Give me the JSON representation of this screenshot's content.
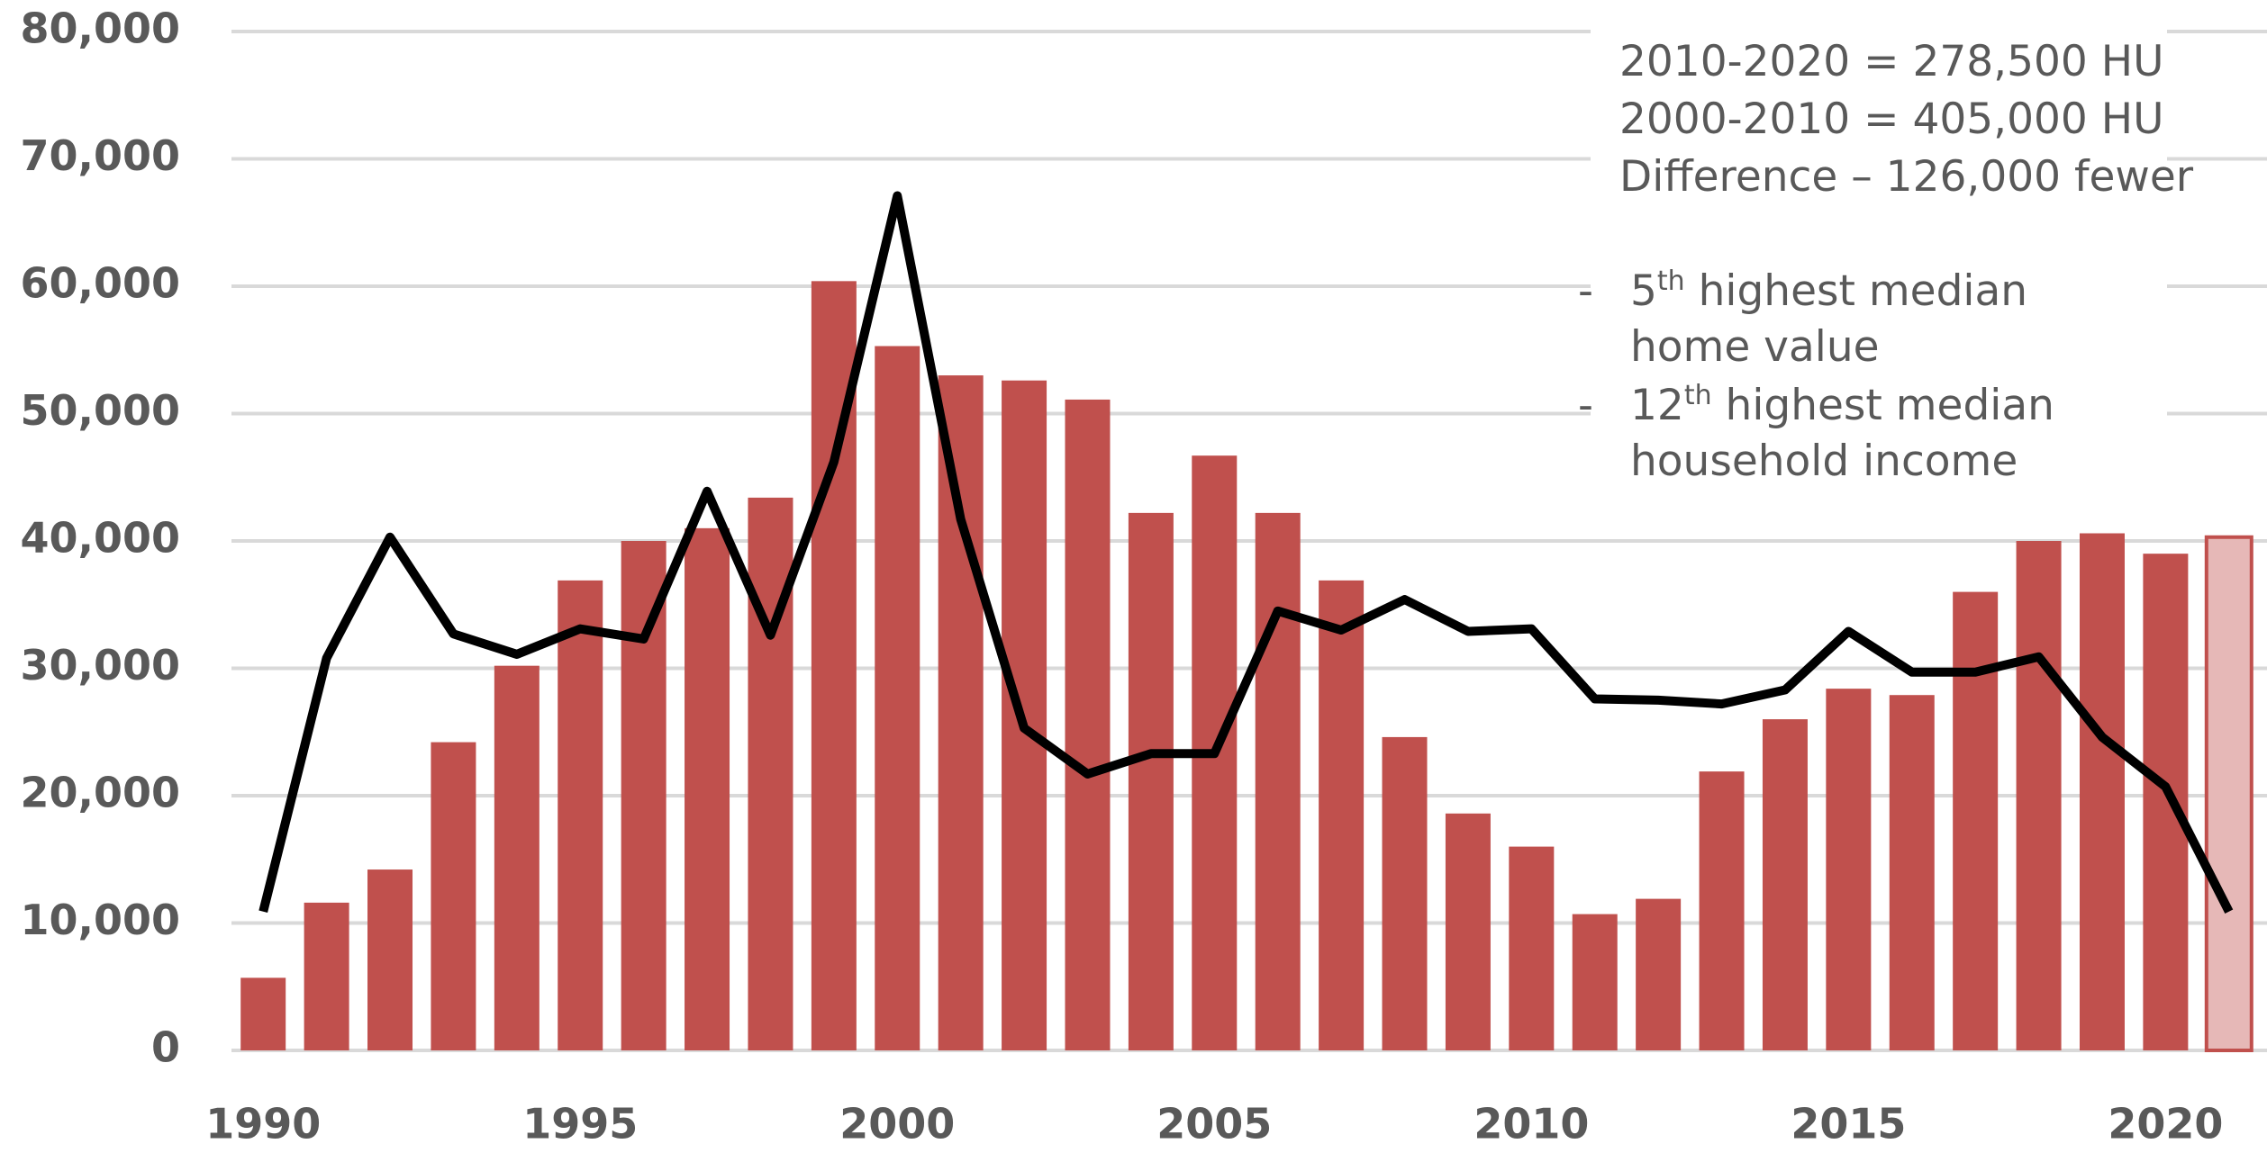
{
  "chart_data": {
    "type": "bar+line",
    "x": [
      1990,
      1991,
      1992,
      1993,
      1994,
      1995,
      1996,
      1997,
      1998,
      1999,
      2000,
      2001,
      2002,
      2003,
      2004,
      2005,
      2006,
      2007,
      2008,
      2009,
      2010,
      2011,
      2012,
      2013,
      2014,
      2015,
      2016,
      2017,
      2018,
      2019,
      2020,
      2021
    ],
    "series": [
      {
        "type": "bar",
        "color": "#c0504d",
        "colors": [
          "#c0504d",
          "#c0504d",
          "#c0504d",
          "#c0504d",
          "#c0504d",
          "#c0504d",
          "#c0504d",
          "#c0504d",
          "#c0504d",
          "#c0504d",
          "#c0504d",
          "#c0504d",
          "#c0504d",
          "#c0504d",
          "#c0504d",
          "#c0504d",
          "#c0504d",
          "#c0504d",
          "#c0504d",
          "#c0504d",
          "#c0504d",
          "#c0504d",
          "#c0504d",
          "#c0504d",
          "#c0504d",
          "#c0504d",
          "#c0504d",
          "#c0504d",
          "#c0504d",
          "#c0504d",
          "#c0504d",
          "#e6b8b7"
        ],
        "values": [
          5700,
          11600,
          14200,
          24200,
          30200,
          36900,
          40000,
          41000,
          43400,
          60400,
          55300,
          53000,
          52600,
          51100,
          42200,
          46700,
          42200,
          36900,
          24600,
          18600,
          16000,
          10700,
          11900,
          21900,
          26000,
          28400,
          27900,
          36000,
          40000,
          40600,
          39000,
          40300
        ]
      },
      {
        "type": "line",
        "color": "#000000",
        "values": [
          10900,
          30800,
          40300,
          32700,
          31100,
          33100,
          32300,
          43900,
          32600,
          46200,
          67100,
          41700,
          25300,
          21700,
          23300,
          23300,
          34500,
          33000,
          35400,
          32900,
          33100,
          27600,
          27500,
          27200,
          28300,
          32900,
          29700,
          29700,
          30900,
          24600,
          20700,
          10900
        ]
      }
    ],
    "xlim": [
      1989.5,
      2021.5
    ],
    "xticks": [
      1990,
      1995,
      2000,
      2005,
      2010,
      2015,
      2020
    ],
    "ylim": [
      0,
      80000
    ],
    "yticks": [
      0,
      {
        "value": 10000,
        "label": "10,000"
      },
      {
        "value": 20000,
        "label": "20,000"
      },
      {
        "value": 30000,
        "label": "30,000"
      },
      {
        "value": 40000,
        "label": "40,000"
      },
      {
        "value": 50000,
        "label": "50,000"
      },
      {
        "value": 60000,
        "label": "60,000"
      },
      {
        "value": 70000,
        "label": "70,000"
      },
      {
        "value": 80000,
        "label": "80,000"
      }
    ],
    "grid": true,
    "annotations": [
      "2010-2020 = 278,500 HU",
      "2000-2010 = 405,000 HU",
      "Difference – 126,000 fewer"
    ],
    "bullet": "-",
    "bullets": [
      {
        "lead": "5",
        "sup": "th",
        "lines": [
          " highest median",
          "home value"
        ]
      },
      {
        "lead": "12",
        "sup": "th",
        "lines": [
          " highest median",
          "household income"
        ]
      }
    ]
  }
}
